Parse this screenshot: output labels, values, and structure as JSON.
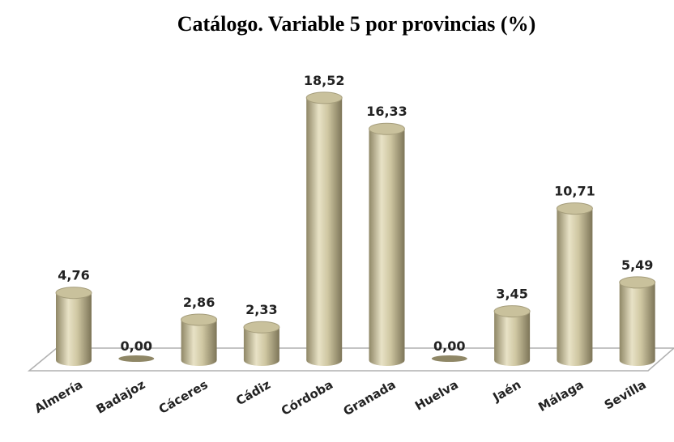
{
  "chart_data": {
    "type": "bar",
    "title": "Catálogo. Variable 5 por provincias (%)",
    "categories": [
      "Almería",
      "Badajoz",
      "Cáceres",
      "Cádiz",
      "Córdoba",
      "Granada",
      "Huelva",
      "Jaén",
      "Málaga",
      "Sevilla"
    ],
    "values": [
      4.76,
      0,
      2.86,
      2.33,
      18.52,
      16.33,
      0,
      3.45,
      10.71,
      5.49
    ],
    "value_labels": [
      "4,76",
      "0,00",
      "2,86",
      "2,33",
      "18,52",
      "16,33",
      "0,00",
      "3,45",
      "10,71",
      "5,49"
    ],
    "color": "#c9c19c"
  }
}
